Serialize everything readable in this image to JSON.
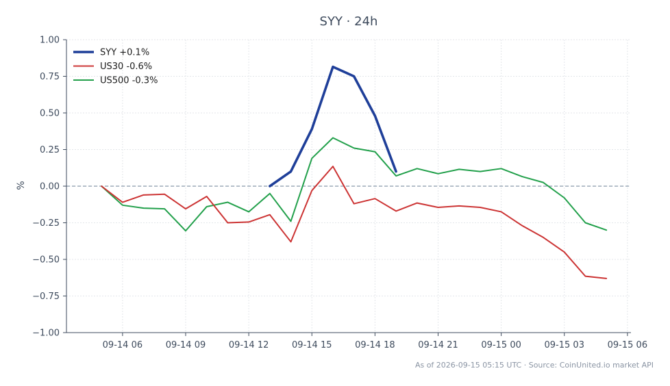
{
  "chart_data": {
    "type": "line",
    "title": "SYY · 24h",
    "ylabel": "%",
    "xlabel": "",
    "ylim": [
      -1.0,
      1.0
    ],
    "yticks": [
      1.0,
      0.75,
      0.5,
      0.25,
      0.0,
      -0.25,
      -0.5,
      -0.75,
      -1.0
    ],
    "ytick_labels": [
      "1.00",
      "0.75",
      "0.50",
      "0.25",
      "0.00",
      "−0.25",
      "−0.50",
      "−0.75",
      "−1.00"
    ],
    "xlim": [
      "2026-09-14 03:20",
      "2026-09-15 06:10"
    ],
    "xticks": [
      "2026-09-14 06:00",
      "2026-09-14 09:00",
      "2026-09-14 12:00",
      "2026-09-14 15:00",
      "2026-09-14 18:00",
      "2026-09-14 21:00",
      "2026-09-15 00:00",
      "2026-09-15 03:00",
      "2026-09-15 06:00"
    ],
    "xtick_labels": [
      "09-14 06",
      "09-14 09",
      "09-14 12",
      "09-14 15",
      "09-14 18",
      "09-14 21",
      "09-15 00",
      "09-15 03",
      "09-15 06"
    ],
    "grid": true,
    "legend_position": "top-left",
    "zero_line": true,
    "series": [
      {
        "name": "SYY +0.1%",
        "color": "#1f3f99",
        "x": [
          "2026-09-14 13:00",
          "2026-09-14 14:00",
          "2026-09-14 15:00",
          "2026-09-14 16:00",
          "2026-09-14 17:00",
          "2026-09-14 18:00",
          "2026-09-14 19:00"
        ],
        "values": [
          0.0,
          0.1,
          0.39,
          0.815,
          0.75,
          0.48,
          0.1
        ]
      },
      {
        "name": "US30 -0.6%",
        "color": "#cc3333",
        "x": [
          "2026-09-14 05:00",
          "2026-09-14 06:00",
          "2026-09-14 07:00",
          "2026-09-14 08:00",
          "2026-09-14 09:00",
          "2026-09-14 10:00",
          "2026-09-14 11:00",
          "2026-09-14 12:00",
          "2026-09-14 13:00",
          "2026-09-14 14:00",
          "2026-09-14 15:00",
          "2026-09-14 16:00",
          "2026-09-14 17:00",
          "2026-09-14 18:00",
          "2026-09-14 19:00",
          "2026-09-14 20:00",
          "2026-09-14 21:00",
          "2026-09-14 22:00",
          "2026-09-14 23:00",
          "2026-09-15 00:00",
          "2026-09-15 01:00",
          "2026-09-15 02:00",
          "2026-09-15 03:00",
          "2026-09-15 04:00",
          "2026-09-15 05:00"
        ],
        "values": [
          0.0,
          -0.11,
          -0.06,
          -0.055,
          -0.155,
          -0.07,
          -0.25,
          -0.245,
          -0.195,
          -0.38,
          -0.03,
          0.135,
          -0.12,
          -0.085,
          -0.17,
          -0.115,
          -0.145,
          -0.135,
          -0.145,
          -0.175,
          -0.27,
          -0.35,
          -0.45,
          -0.615,
          -0.63
        ]
      },
      {
        "name": "US500 -0.3%",
        "color": "#22a04b",
        "x": [
          "2026-09-14 05:00",
          "2026-09-14 06:00",
          "2026-09-14 07:00",
          "2026-09-14 08:00",
          "2026-09-14 09:00",
          "2026-09-14 10:00",
          "2026-09-14 11:00",
          "2026-09-14 12:00",
          "2026-09-14 13:00",
          "2026-09-14 14:00",
          "2026-09-14 15:00",
          "2026-09-14 16:00",
          "2026-09-14 17:00",
          "2026-09-14 18:00",
          "2026-09-14 19:00",
          "2026-09-14 20:00",
          "2026-09-14 21:00",
          "2026-09-14 22:00",
          "2026-09-14 23:00",
          "2026-09-15 00:00",
          "2026-09-15 01:00",
          "2026-09-15 02:00",
          "2026-09-15 03:00",
          "2026-09-15 04:00",
          "2026-09-15 05:00"
        ],
        "values": [
          0.0,
          -0.13,
          -0.15,
          -0.155,
          -0.305,
          -0.14,
          -0.11,
          -0.175,
          -0.05,
          -0.24,
          0.19,
          0.33,
          0.26,
          0.235,
          0.07,
          0.12,
          0.085,
          0.115,
          0.1,
          0.12,
          0.065,
          0.025,
          -0.08,
          -0.25,
          -0.3
        ]
      }
    ]
  },
  "footer": {
    "text": "As of 2026-09-15 05:15 UTC · Source: CoinUnited.io market API"
  }
}
